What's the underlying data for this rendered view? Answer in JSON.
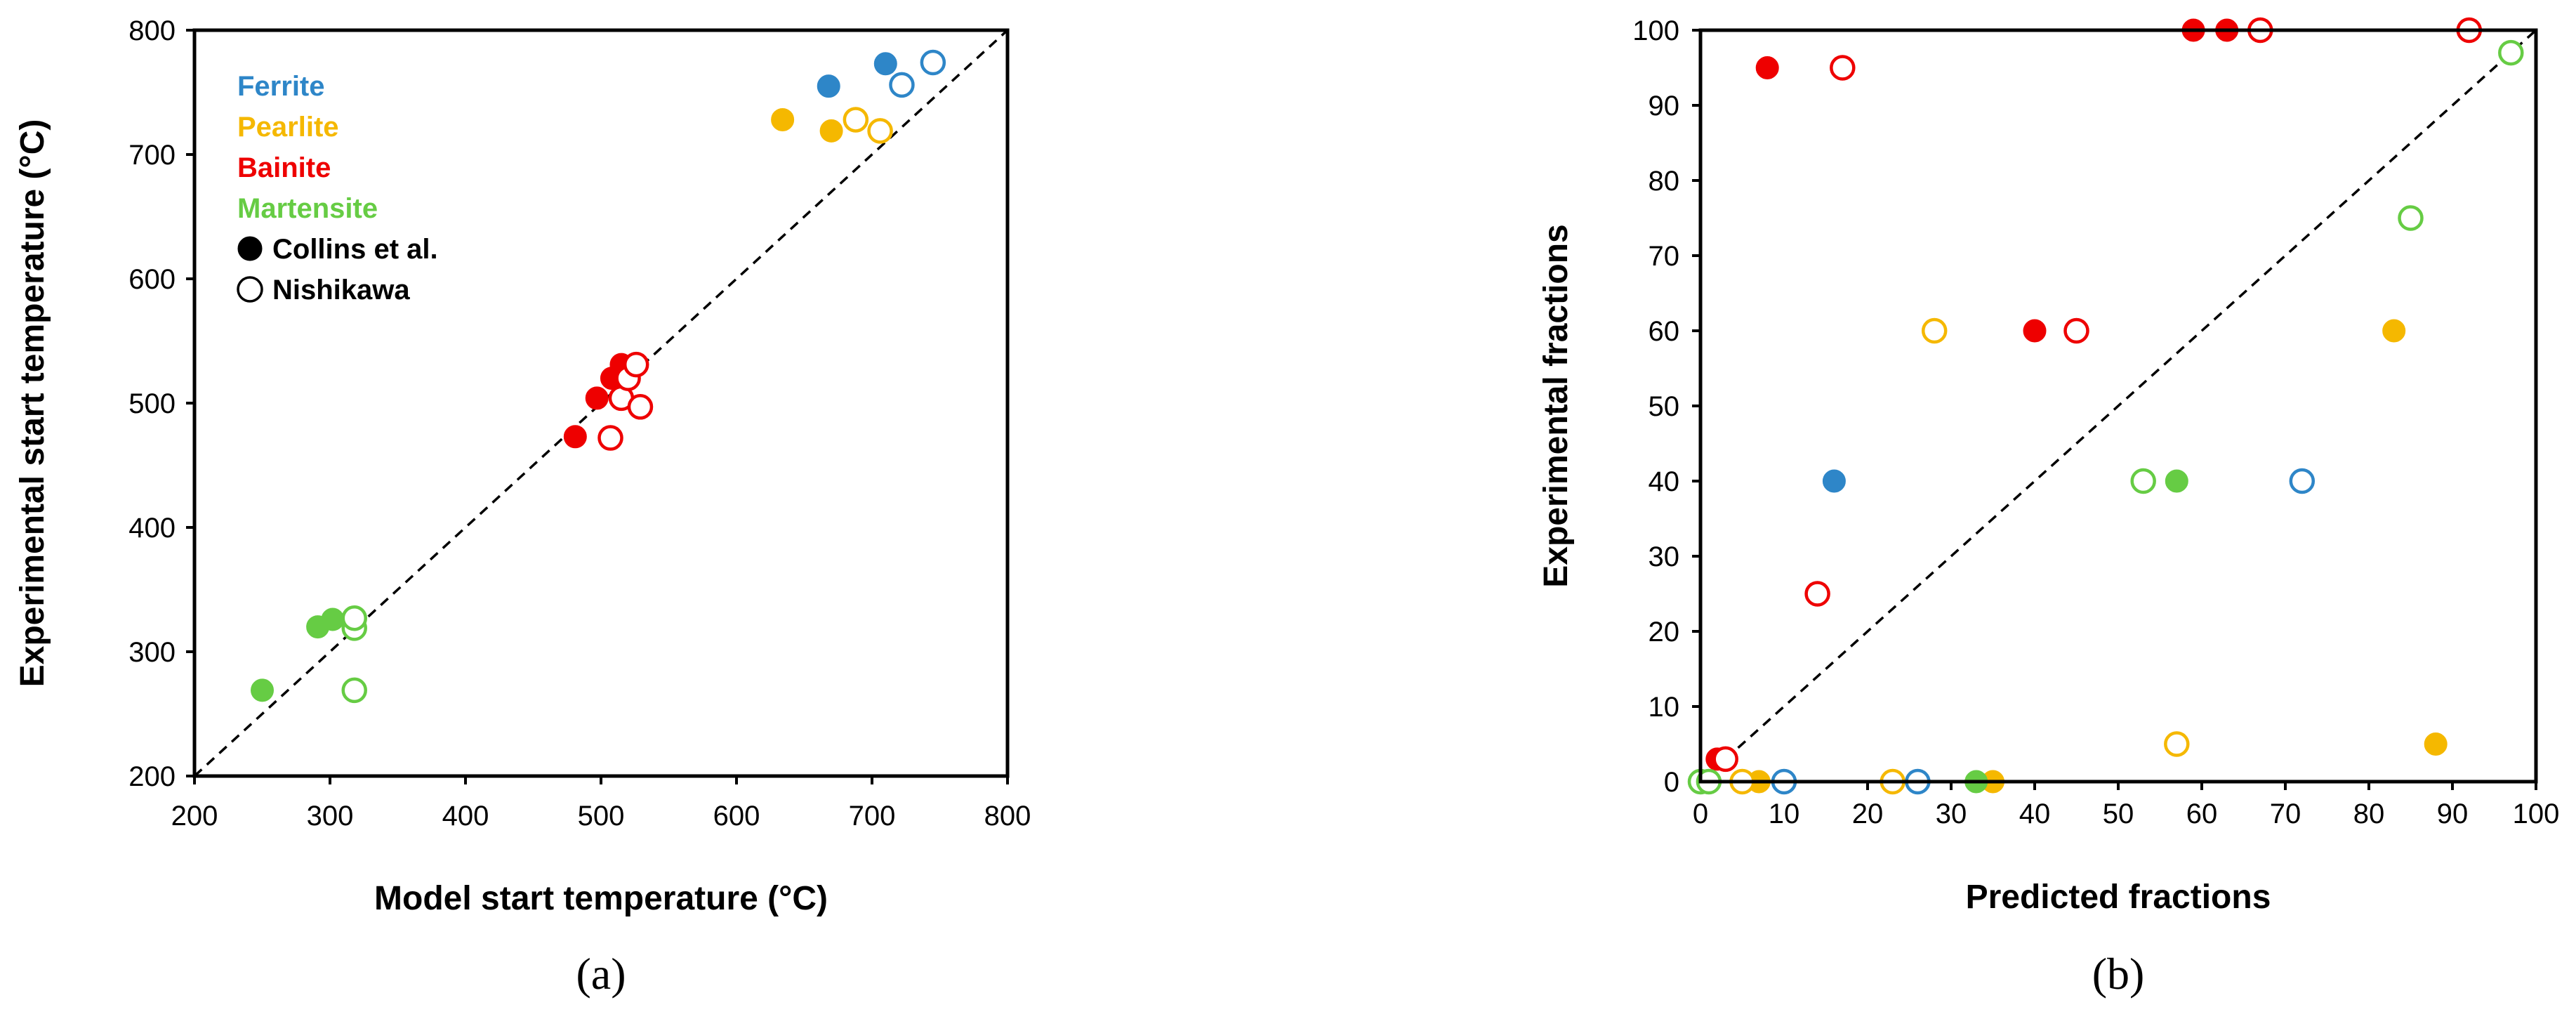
{
  "colors": {
    "Ferrite": "#2e86c8",
    "Pearlite": "#f5b800",
    "Bainite": "#ee0000",
    "Martensite": "#66cc44"
  },
  "chart_data": [
    {
      "type": "scatter",
      "panel_label": "(a)",
      "xlabel": "Model start temperature (°C)",
      "ylabel": "Experimental start temperature (°C)",
      "xlim": [
        200,
        800
      ],
      "ylim": [
        200,
        800
      ],
      "xticks": [
        200,
        300,
        400,
        500,
        600,
        700,
        800
      ],
      "yticks": [
        200,
        300,
        400,
        500,
        600,
        700,
        800
      ],
      "reference_line": "y = x (dashed)",
      "legend": {
        "phases": [
          "Ferrite",
          "Pearlite",
          "Bainite",
          "Martensite"
        ],
        "sources": [
          {
            "label": "Collins et al.",
            "marker": "filled"
          },
          {
            "label": "Nishikawa",
            "marker": "open"
          }
        ],
        "placement": "top-left"
      },
      "series": [
        {
          "phase": "Ferrite",
          "source": "Collins et al.",
          "points": [
            [
              668,
              755
            ],
            [
              710,
              773
            ]
          ]
        },
        {
          "phase": "Ferrite",
          "source": "Nishikawa",
          "points": [
            [
              722,
              756
            ],
            [
              745,
              774
            ]
          ]
        },
        {
          "phase": "Pearlite",
          "source": "Collins et al.",
          "points": [
            [
              634,
              728
            ],
            [
              670,
              719
            ]
          ]
        },
        {
          "phase": "Pearlite",
          "source": "Nishikawa",
          "points": [
            [
              688,
              728
            ],
            [
              706,
              719
            ]
          ]
        },
        {
          "phase": "Bainite",
          "source": "Collins et al.",
          "points": [
            [
              481,
              473
            ],
            [
              497,
              504
            ],
            [
              508,
              520
            ],
            [
              515,
              531
            ]
          ]
        },
        {
          "phase": "Bainite",
          "source": "Nishikawa",
          "points": [
            [
              507,
              472
            ],
            [
              515,
              504
            ],
            [
              520,
              520
            ],
            [
              526,
              531
            ],
            [
              529,
              497
            ]
          ]
        },
        {
          "phase": "Martensite",
          "source": "Collins et al.",
          "points": [
            [
              250,
              269
            ],
            [
              291,
              320
            ],
            [
              302,
              326
            ]
          ]
        },
        {
          "phase": "Martensite",
          "source": "Nishikawa",
          "points": [
            [
              318,
              319
            ],
            [
              318,
              327
            ],
            [
              318,
              269
            ]
          ]
        }
      ]
    },
    {
      "type": "scatter",
      "panel_label": "(b)",
      "xlabel": "Predicted fractions",
      "ylabel": "Experimental fractions",
      "xlim": [
        0,
        100
      ],
      "ylim": [
        0,
        100
      ],
      "xticks": [
        0,
        10,
        20,
        30,
        40,
        50,
        60,
        70,
        80,
        90,
        100
      ],
      "yticks": [
        0,
        10,
        20,
        30,
        40,
        50,
        60,
        70,
        80,
        90,
        100
      ],
      "reference_line": "y = x (dashed)",
      "series": [
        {
          "phase": "Ferrite",
          "source": "Collins et al.",
          "points": [
            [
              16,
              40
            ]
          ]
        },
        {
          "phase": "Ferrite",
          "source": "Nishikawa",
          "points": [
            [
              72,
              40
            ],
            [
              10,
              0
            ],
            [
              26,
              0
            ]
          ]
        },
        {
          "phase": "Pearlite",
          "source": "Collins et al.",
          "points": [
            [
              83,
              60
            ],
            [
              88,
              5
            ],
            [
              7,
              0
            ],
            [
              35,
              0
            ]
          ]
        },
        {
          "phase": "Pearlite",
          "source": "Nishikawa",
          "points": [
            [
              28,
              60
            ],
            [
              57,
              5
            ],
            [
              5,
              0
            ],
            [
              23,
              0
            ]
          ]
        },
        {
          "phase": "Bainite",
          "source": "Collins et al.",
          "points": [
            [
              8,
              95
            ],
            [
              59,
              100
            ],
            [
              63,
              100
            ],
            [
              40,
              60
            ],
            [
              2,
              3
            ]
          ]
        },
        {
          "phase": "Bainite",
          "source": "Nishikawa",
          "points": [
            [
              17,
              95
            ],
            [
              67,
              100
            ],
            [
              92,
              100
            ],
            [
              45,
              60
            ],
            [
              14,
              25
            ],
            [
              3,
              3
            ]
          ]
        },
        {
          "phase": "Martensite",
          "source": "Collins et al.",
          "points": [
            [
              57,
              40
            ],
            [
              33,
              0
            ]
          ]
        },
        {
          "phase": "Martensite",
          "source": "Nishikawa",
          "points": [
            [
              53,
              40
            ],
            [
              85,
              75
            ],
            [
              97,
              97
            ],
            [
              0,
              0
            ],
            [
              1,
              0
            ]
          ]
        }
      ]
    }
  ]
}
